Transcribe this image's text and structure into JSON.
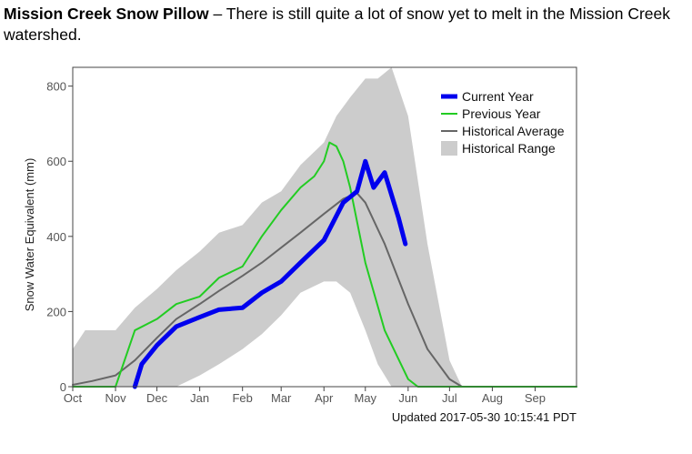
{
  "caption": {
    "title": "Mission Creek Snow Pillow",
    "text": " – There is still quite a lot of snow yet to melt in the Mission Creek watershed."
  },
  "chart_data": {
    "type": "line",
    "ylabel": "Snow Water Equivalent (mm)",
    "xlabel": "",
    "ylim": [
      0,
      850
    ],
    "y_ticks": [
      0,
      200,
      400,
      600,
      800
    ],
    "x_ticks": [
      "Oct",
      "Nov",
      "Dec",
      "Jan",
      "Feb",
      "Mar",
      "Apr",
      "May",
      "Jun",
      "Jul",
      "Aug",
      "Sep"
    ],
    "updated_label": "Updated 2017-05-30 10:15:41 PDT",
    "legend_position": "top-right",
    "colors": {
      "current": "#0000ee",
      "previous": "#22cc22",
      "average": "#666666",
      "range": "#cccccc"
    },
    "series": [
      {
        "name": "Current Year",
        "x": [
          "Oct 1",
          "Nov 15",
          "Nov 20",
          "Dec 1",
          "Dec 15",
          "Jan 1",
          "Jan 15",
          "Feb 1",
          "Feb 15",
          "Mar 1",
          "Mar 15",
          "Apr 1",
          "Apr 15",
          "Apr 25",
          "May 1",
          "May 7",
          "May 15",
          "May 20",
          "May 25",
          "May 30"
        ],
        "y": [
          null,
          0,
          60,
          110,
          160,
          185,
          205,
          210,
          250,
          280,
          330,
          390,
          490,
          520,
          600,
          530,
          570,
          510,
          450,
          380
        ]
      },
      {
        "name": "Previous Year",
        "x": [
          "Oct 1",
          "Oct 20",
          "Nov 1",
          "Nov 15",
          "Dec 1",
          "Dec 15",
          "Jan 1",
          "Jan 15",
          "Feb 1",
          "Feb 15",
          "Mar 1",
          "Mar 15",
          "Mar 25",
          "Apr 1",
          "Apr 5",
          "Apr 10",
          "Apr 15",
          "Apr 20",
          "May 1",
          "May 15",
          "Jun 1",
          "Jun 8"
        ],
        "y": [
          0,
          0,
          0,
          150,
          180,
          220,
          240,
          290,
          320,
          400,
          470,
          530,
          560,
          600,
          650,
          640,
          600,
          530,
          330,
          150,
          20,
          0
        ]
      },
      {
        "name": "Historical Average",
        "x": [
          "Oct 1",
          "Oct 15",
          "Nov 1",
          "Nov 15",
          "Dec 1",
          "Dec 15",
          "Jan 1",
          "Jan 15",
          "Feb 1",
          "Feb 15",
          "Mar 1",
          "Mar 15",
          "Apr 1",
          "Apr 15",
          "Apr 25",
          "May 1",
          "May 15",
          "Jun 1",
          "Jun 15",
          "Jul 1",
          "Jul 10"
        ],
        "y": [
          5,
          15,
          30,
          70,
          130,
          180,
          220,
          255,
          295,
          330,
          370,
          410,
          460,
          500,
          515,
          490,
          380,
          220,
          100,
          20,
          0
        ]
      }
    ],
    "range": {
      "name": "Historical Range",
      "x": [
        "Oct 1",
        "Oct 10",
        "Nov 1",
        "Nov 15",
        "Dec 1",
        "Dec 15",
        "Jan 1",
        "Jan 15",
        "Feb 1",
        "Feb 15",
        "Mar 1",
        "Mar 15",
        "Apr 1",
        "Apr 10",
        "Apr 20",
        "May 1",
        "May 10",
        "May 20",
        "Jun 1",
        "Jun 15",
        "Jul 1",
        "Jul 10"
      ],
      "upper": [
        100,
        150,
        150,
        210,
        260,
        310,
        360,
        410,
        430,
        490,
        520,
        590,
        650,
        720,
        770,
        820,
        820,
        850,
        720,
        380,
        70,
        0
      ],
      "lower": [
        0,
        0,
        0,
        0,
        0,
        0,
        30,
        60,
        100,
        140,
        190,
        250,
        280,
        280,
        250,
        150,
        60,
        0,
        0,
        0,
        0,
        0
      ]
    }
  }
}
